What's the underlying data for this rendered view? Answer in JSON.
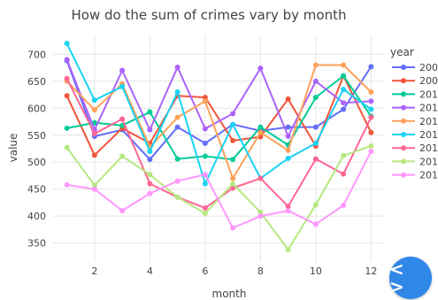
{
  "chart_data": {
    "type": "line",
    "title": "How do the sum of crimes vary by month",
    "xlabel": "month",
    "ylabel": "value",
    "x": [
      1,
      2,
      3,
      4,
      5,
      6,
      7,
      8,
      9,
      10,
      11,
      12
    ],
    "xlim": [
      0.5,
      12.5
    ],
    "ylim": [
      315,
      735
    ],
    "xticks": [
      2,
      4,
      6,
      8,
      10,
      12
    ],
    "yticks": [
      350,
      400,
      450,
      500,
      550,
      600,
      650,
      700
    ],
    "grid": true,
    "legend_title": "year",
    "legend_position": "right",
    "series": [
      {
        "name": "200",
        "color": "#636efa",
        "values": [
          688,
          548,
          560,
          505,
          565,
          535,
          570,
          558,
          565,
          565,
          598,
          677
        ]
      },
      {
        "name": "200",
        "color": "#ef553b",
        "values": [
          623,
          513,
          563,
          535,
          623,
          620,
          540,
          547,
          617,
          530,
          660,
          555
        ]
      },
      {
        "name": "201",
        "color": "#00cc96",
        "values": [
          563,
          573,
          568,
          593,
          506,
          511,
          505,
          565,
          532,
          620,
          660,
          585
        ]
      },
      {
        "name": "201",
        "color": "#ab63fa",
        "values": [
          690,
          560,
          670,
          560,
          676,
          562,
          590,
          674,
          548,
          650,
          610,
          613
        ]
      },
      {
        "name": "201",
        "color": "#ffa15a",
        "values": [
          650,
          597,
          645,
          528,
          583,
          613,
          470,
          555,
          522,
          680,
          680,
          630
        ]
      },
      {
        "name": "201",
        "color": "#19d3f3",
        "values": [
          720,
          615,
          640,
          520,
          630,
          460,
          570,
          470,
          507,
          535,
          635,
          598
        ]
      },
      {
        "name": "201",
        "color": "#ff6692",
        "values": [
          655,
          553,
          580,
          460,
          435,
          415,
          452,
          470,
          418,
          506,
          478,
          583
        ]
      },
      {
        "name": "201",
        "color": "#b6e880",
        "values": [
          527,
          457,
          511,
          477,
          435,
          405,
          460,
          407,
          338,
          421,
          512,
          530
        ]
      },
      {
        "name": "201",
        "color": "#ff97ff",
        "values": [
          458,
          450,
          410,
          442,
          465,
          477,
          378,
          400,
          410,
          385,
          420,
          520
        ]
      }
    ]
  },
  "nav": {
    "glyph": "< >"
  }
}
